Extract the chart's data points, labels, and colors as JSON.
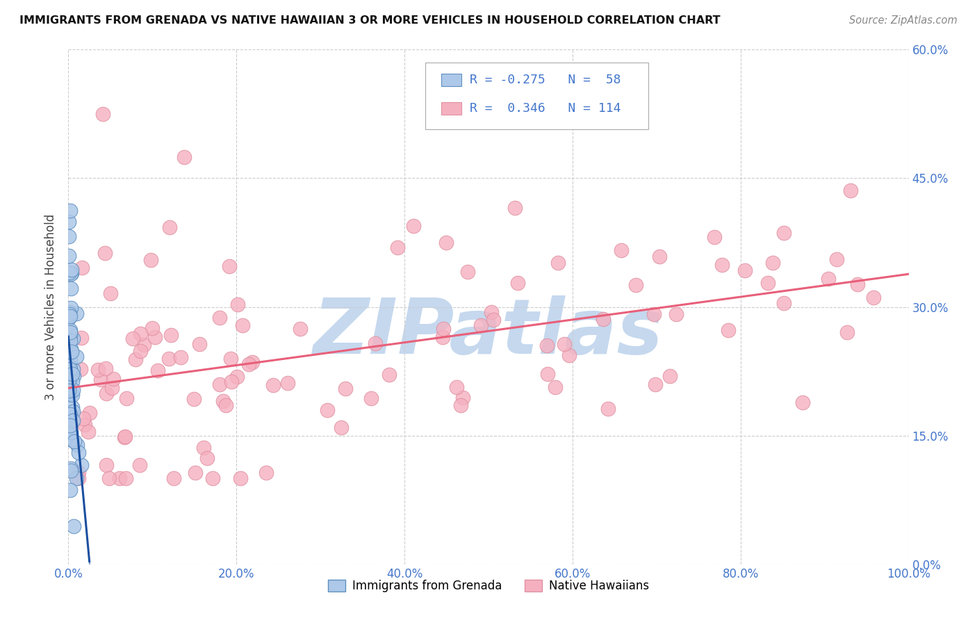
{
  "title": "IMMIGRANTS FROM GRENADA VS NATIVE HAWAIIAN 3 OR MORE VEHICLES IN HOUSEHOLD CORRELATION CHART",
  "source": "Source: ZipAtlas.com",
  "ylabel": "3 or more Vehicles in Household",
  "xlim": [
    0.0,
    1.0
  ],
  "ylim": [
    0.0,
    0.6
  ],
  "xticks": [
    0.0,
    0.2,
    0.4,
    0.6,
    0.8,
    1.0
  ],
  "xticklabels": [
    "0.0%",
    "20.0%",
    "40.0%",
    "60.0%",
    "80.0%",
    "100.0%"
  ],
  "yticks": [
    0.0,
    0.15,
    0.3,
    0.45,
    0.6
  ],
  "yticklabels": [
    "0.0%",
    "15.0%",
    "30.0%",
    "45.0%",
    "60.0%"
  ],
  "blue_R": -0.275,
  "blue_N": 58,
  "pink_R": 0.346,
  "pink_N": 114,
  "blue_color": "#adc8e8",
  "pink_color": "#f5b0c0",
  "blue_line_color": "#1a4fa0",
  "pink_line_color": "#e8607a",
  "blue_edge_color": "#6090c0",
  "pink_edge_color": "#e090a0",
  "watermark": "ZIPatlas",
  "watermark_color": "#c5d8ee",
  "legend_label_blue": "Immigrants from Grenada",
  "legend_label_pink": "Native Hawaiians",
  "tick_color": "#4477cc",
  "label_color": "#444444"
}
